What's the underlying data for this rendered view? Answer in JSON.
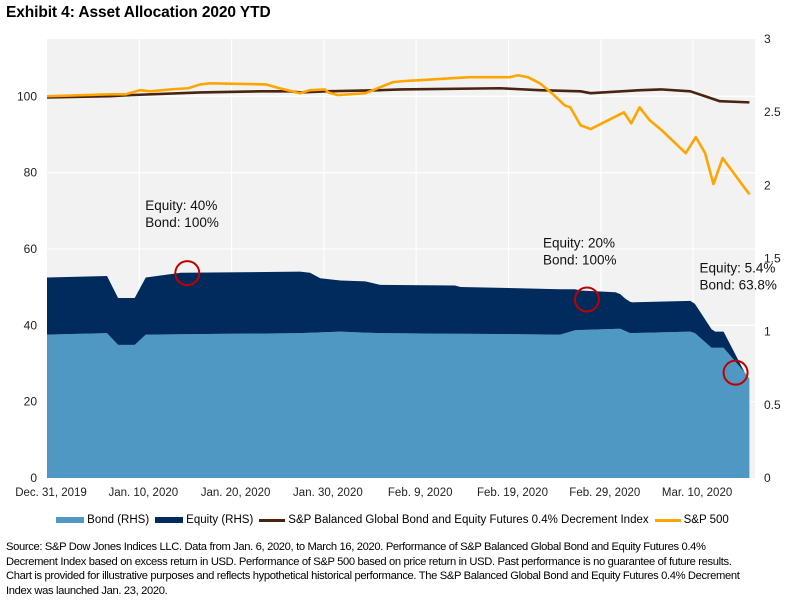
{
  "title": "Exhibit 4: Asset Allocation 2020 YTD",
  "colors": {
    "plot_bg": "#f2f2f2",
    "grid": "#ffffff",
    "bond": "#4f98c3",
    "equity": "#002b5c",
    "balanced_index": "#4a2410",
    "sp500": "#ffa500",
    "circle": "#c00000"
  },
  "chart_data": {
    "type": "area+line",
    "title": "Exhibit 4: Asset Allocation 2020 YTD",
    "x_unit": "days since Dec. 31, 2019",
    "x_range": [
      0,
      76
    ],
    "x_ticks": [
      {
        "day": 0,
        "label": "Dec. 31, 2019"
      },
      {
        "day": 10,
        "label": "Jan. 10, 2020"
      },
      {
        "day": 20,
        "label": "Jan. 20, 2020"
      },
      {
        "day": 30,
        "label": "Jan. 30, 2020"
      },
      {
        "day": 40,
        "label": "Feb. 9, 2020"
      },
      {
        "day": 50,
        "label": "Feb. 19, 2020"
      },
      {
        "day": 60,
        "label": "Feb. 29, 2020"
      },
      {
        "day": 70,
        "label": "Mar. 10, 2020"
      }
    ],
    "y_left": {
      "range": [
        0,
        115
      ],
      "ticks": [
        0,
        20,
        40,
        60,
        80,
        100
      ],
      "grid": true
    },
    "y_right": {
      "range": [
        0,
        3
      ],
      "ticks": [
        "0",
        "0.5",
        "1",
        "1.5",
        "2",
        "2.5",
        "3"
      ]
    },
    "series": [
      {
        "name": "Bond (RHS)",
        "type": "stacked-area",
        "axis": "right",
        "x": [
          0,
          6.5,
          7.7,
          9.5,
          10.7,
          27.4,
          31.8,
          36.1,
          55.6,
          57.2,
          62.1,
          63.2,
          69.7,
          70.2,
          72.0,
          73.3,
          75.6,
          76.1
        ],
        "values": [
          0.98,
          0.99,
          0.91,
          0.91,
          0.98,
          0.99,
          1.0,
          0.99,
          0.98,
          1.01,
          1.02,
          0.99,
          1.0,
          0.99,
          0.89,
          0.89,
          0.72,
          0.68
        ]
      },
      {
        "name": "Equity (RHS)",
        "type": "stacked-area",
        "axis": "right",
        "x": [
          0,
          6.5,
          7.7,
          9.5,
          10.7,
          14.5,
          27.4,
          28.5,
          29.6,
          31.8,
          34.5,
          36.1,
          44.2,
          44.8,
          55.6,
          57.2,
          57.8,
          61.6,
          62.7,
          63.5,
          69.7,
          70.2,
          72.4,
          73.3,
          75.6,
          76.1
        ],
        "values": [
          0.39,
          0.39,
          0.32,
          0.32,
          0.39,
          0.42,
          0.42,
          0.41,
          0.37,
          0.35,
          0.35,
          0.33,
          0.33,
          0.32,
          0.31,
          0.28,
          0.27,
          0.25,
          0.22,
          0.21,
          0.21,
          0.2,
          0.11,
          0.11,
          0.0,
          0.0
        ]
      },
      {
        "name": "S&P Balanced Global Bond and Equity Futures 0.4% Decrement Index",
        "type": "line",
        "axis": "left",
        "x": [
          0,
          6.8,
          9.0,
          16.6,
          23.1,
          26.3,
          27.4,
          30.2,
          36.1,
          38.3,
          49.1,
          53.4,
          57.8,
          58.9,
          64.3,
          66.5,
          69.7,
          71.3,
          72.9,
          76.1
        ],
        "values": [
          99.7,
          100.0,
          100.3,
          101.0,
          101.3,
          101.3,
          101.0,
          101.3,
          101.6,
          101.8,
          102.1,
          101.6,
          101.3,
          100.8,
          101.6,
          101.8,
          101.3,
          100.0,
          98.7,
          98.4
        ]
      },
      {
        "name": "S&P 500",
        "type": "line",
        "axis": "left",
        "x": [
          0,
          6.8,
          8.5,
          10.1,
          11.2,
          13.4,
          15.3,
          16.6,
          17.7,
          23.7,
          25.2,
          27.4,
          28.5,
          30.1,
          30.5,
          31.5,
          34.5,
          35.5,
          37.5,
          38.8,
          40.4,
          43.7,
          45.8,
          50.2,
          51.0,
          52.1,
          53.4,
          54.7,
          56.1,
          56.7,
          57.8,
          58.9,
          62.5,
          63.3,
          64.2,
          65.3,
          66.6,
          69.2,
          70.3,
          71.3,
          72.2,
          73.2,
          76.1
        ],
        "values": [
          100.0,
          100.5,
          100.5,
          101.6,
          101.3,
          101.8,
          102.1,
          103.1,
          103.4,
          103.1,
          102.1,
          100.8,
          101.6,
          101.8,
          101.0,
          100.3,
          100.8,
          101.8,
          103.7,
          104.0,
          104.2,
          104.7,
          105.0,
          105.0,
          105.5,
          105.0,
          103.4,
          100.8,
          97.6,
          97.1,
          92.4,
          91.4,
          95.8,
          92.9,
          97.1,
          93.7,
          91.1,
          85.1,
          89.3,
          85.1,
          77.0,
          83.8,
          74.3
        ]
      }
    ],
    "annotations": [
      {
        "text_lines": [
          "Equity: 40%",
          "Bond: 100%"
        ],
        "day": 15.2,
        "value_right": 1.4
      },
      {
        "text_lines": [
          "Equity: 20%",
          "Bond: 100%"
        ],
        "day": 58.5,
        "value_right": 1.22
      },
      {
        "text_lines": [
          "Equity: 5.4%",
          "Bond: 63.8%"
        ],
        "day": 74.6,
        "value_right": 0.72
      }
    ],
    "legend": {
      "position": "bottom",
      "entries": [
        {
          "label": "Bond (RHS)",
          "kind": "area"
        },
        {
          "label": "Equity (RHS)",
          "kind": "area"
        },
        {
          "label": "S&P Balanced Global Bond and Equity Futures 0.4% Decrement Index",
          "kind": "line"
        },
        {
          "label": "S&P 500",
          "kind": "line"
        }
      ]
    }
  },
  "source_note": "Source: S&P Dow Jones Indices LLC. Data from Jan. 6, 2020, to March 16, 2020. Performance of S&P Balanced Global Bond and Equity Futures 0.4% Decrement Index based on excess return in USD. Performance of S&P 500 based on price return in USD. Past performance is no guarantee of future results. Chart is provided for illustrative purposes and reflects hypothetical historical performance. The S&P Balanced Global Bond and Equity Futures 0.4% Decrement Index was launched Jan. 23, 2020."
}
